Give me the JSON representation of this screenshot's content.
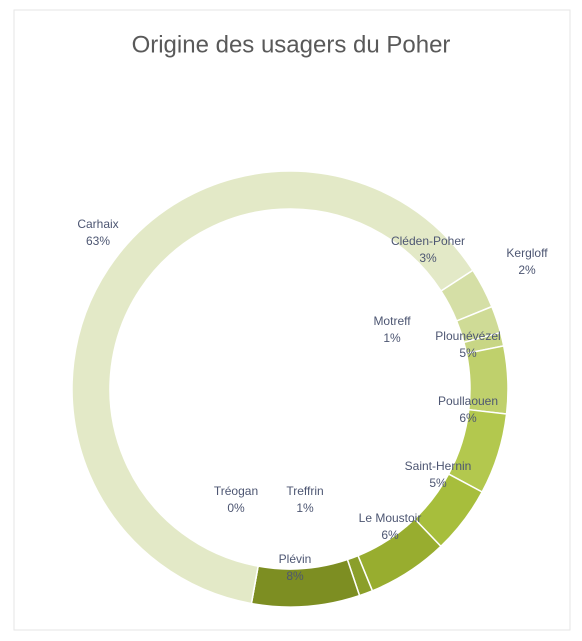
{
  "chart_data": {
    "type": "donut",
    "title": "Origine des usagers du Poher",
    "categories": [
      "Cléden-Poher",
      "Kergloff",
      "Motreff",
      "Plounévézel",
      "Poullaouen",
      "Saint-Hernin",
      "Le Moustoir",
      "Treffrin",
      "Plévin",
      "Tréogan",
      "Carhaix"
    ],
    "values": [
      3,
      2,
      1,
      5,
      6,
      5,
      6,
      1,
      8,
      0,
      63
    ],
    "value_labels": [
      "3%",
      "2%",
      "1%",
      "5%",
      "6%",
      "5%",
      "6%",
      "1%",
      "8%",
      "0%",
      "63%"
    ],
    "colors": [
      "#d5dfa6",
      "#cfdb96",
      "#c8d685",
      "#bfd06c",
      "#b3c84e",
      "#a7be3c",
      "#98ad2f",
      "#8b9f2a",
      "#7d8e22",
      "#728220",
      "#e3e9c7"
    ]
  }
}
